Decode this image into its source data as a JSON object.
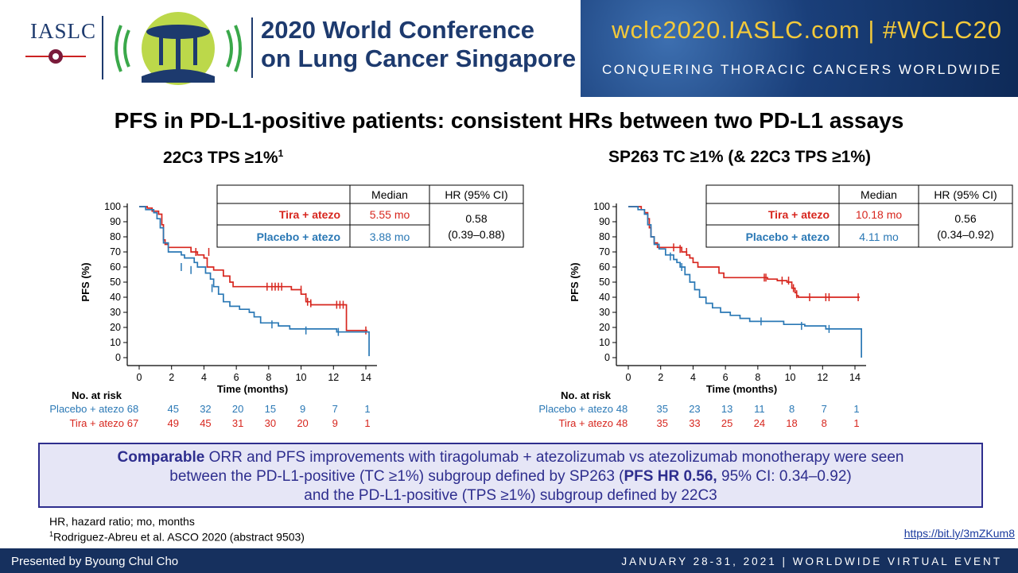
{
  "header": {
    "iaslc_logo": "IASLC",
    "conference_title_line1": "2020 World Conference",
    "conference_title_line2": "on Lung Cancer Singapore",
    "banner_url": "wclc2020.IASLC.com | #WCLC20",
    "banner_tagline": "CONQUERING THORACIC CANCERS WORLDWIDE"
  },
  "slide_title": "PFS in PD-L1-positive patients: consistent HRs between two PD-L1 assays",
  "colors": {
    "tira": "#d7261e",
    "placebo": "#2a78b5",
    "navy": "#16305e",
    "summary_text": "#2e2e8e"
  },
  "chart_data": [
    {
      "type": "line",
      "title": "22C3 TPS ≥1%",
      "title_sup": "1",
      "xlabel": "Time (months)",
      "ylabel": "PFS (%)",
      "xlim": [
        0,
        14
      ],
      "ylim": [
        0,
        100
      ],
      "xticks": [
        0,
        2,
        4,
        6,
        8,
        10,
        12,
        14
      ],
      "yticks": [
        0,
        10,
        20,
        30,
        40,
        50,
        60,
        70,
        80,
        90,
        100
      ],
      "table": {
        "headers": [
          "Median",
          "HR (95% CI)"
        ],
        "rows": [
          {
            "label": "Tira + atezo",
            "median": "5.55 mo"
          },
          {
            "label": "Placebo + atezo",
            "median": "3.88 mo"
          }
        ],
        "hr": "0.58",
        "ci": "(0.39–0.88)"
      },
      "series": [
        {
          "name": "Tira + atezo",
          "points": [
            [
              0,
              100
            ],
            [
              0.3,
              100
            ],
            [
              0.5,
              99
            ],
            [
              0.8,
              97
            ],
            [
              1.2,
              95
            ],
            [
              1.4,
              88
            ],
            [
              1.5,
              78
            ],
            [
              1.6,
              75
            ],
            [
              1.8,
              73
            ],
            [
              3.2,
              70
            ],
            [
              3.6,
              68
            ],
            [
              4.0,
              66
            ],
            [
              4.2,
              60
            ],
            [
              4.6,
              58
            ],
            [
              5.2,
              54
            ],
            [
              5.6,
              50
            ],
            [
              5.8,
              47
            ],
            [
              9.4,
              45
            ],
            [
              10.0,
              42
            ],
            [
              10.3,
              37
            ],
            [
              10.6,
              35
            ],
            [
              12.6,
              35
            ],
            [
              12.8,
              18
            ],
            [
              14.1,
              18
            ]
          ],
          "censors": [
            [
              3.5,
              70
            ],
            [
              4.3,
              70
            ],
            [
              7.9,
              47
            ],
            [
              8.2,
              47
            ],
            [
              8.4,
              47
            ],
            [
              8.6,
              47
            ],
            [
              8.8,
              47
            ],
            [
              10.0,
              45
            ],
            [
              10.3,
              40
            ],
            [
              10.4,
              37
            ],
            [
              10.6,
              36
            ],
            [
              12.2,
              35
            ],
            [
              12.4,
              35
            ],
            [
              12.6,
              35
            ],
            [
              14.0,
              18
            ]
          ]
        },
        {
          "name": "Placebo + atezo",
          "points": [
            [
              0,
              100
            ],
            [
              0.4,
              98
            ],
            [
              0.9,
              96
            ],
            [
              1.1,
              92
            ],
            [
              1.3,
              86
            ],
            [
              1.5,
              76
            ],
            [
              1.8,
              70
            ],
            [
              2.6,
              68
            ],
            [
              2.8,
              66
            ],
            [
              3.4,
              63
            ],
            [
              3.6,
              60
            ],
            [
              4.1,
              56
            ],
            [
              4.4,
              52
            ],
            [
              4.6,
              47
            ],
            [
              4.9,
              42
            ],
            [
              5.2,
              37
            ],
            [
              5.6,
              34
            ],
            [
              6.2,
              32
            ],
            [
              6.8,
              30
            ],
            [
              7.1,
              27
            ],
            [
              7.5,
              23
            ],
            [
              8.6,
              21
            ],
            [
              9.3,
              19
            ],
            [
              12.2,
              17
            ],
            [
              14.0,
              17
            ],
            [
              14.2,
              1
            ]
          ],
          "censors": [
            [
              2.6,
              60
            ],
            [
              3.2,
              58
            ],
            [
              4.5,
              46
            ],
            [
              8.2,
              22
            ],
            [
              10.3,
              18
            ],
            [
              12.3,
              17
            ]
          ]
        }
      ],
      "risk_table": {
        "header": "No. at risk",
        "rows": [
          {
            "label": "Placebo + atezo",
            "values": [
              68,
              45,
              32,
              20,
              15,
              9,
              7,
              1
            ]
          },
          {
            "label": "Tira + atezo",
            "values": [
              67,
              49,
              45,
              31,
              30,
              20,
              9,
              1
            ]
          }
        ]
      }
    },
    {
      "type": "line",
      "title": "SP263 TC ≥1% (& 22C3 TPS ≥1%)",
      "title_sup": "",
      "xlabel": "Time (months)",
      "ylabel": "PFS (%)",
      "xlim": [
        0,
        14
      ],
      "ylim": [
        0,
        100
      ],
      "xticks": [
        0,
        2,
        4,
        6,
        8,
        10,
        12,
        14
      ],
      "yticks": [
        0,
        10,
        20,
        30,
        40,
        50,
        60,
        70,
        80,
        90,
        100
      ],
      "table": {
        "headers": [
          "Median",
          "HR (95% CI)"
        ],
        "rows": [
          {
            "label": "Tira + atezo",
            "median": "10.18 mo"
          },
          {
            "label": "Placebo + atezo",
            "median": "4.11 mo"
          }
        ],
        "hr": "0.56",
        "ci": "(0.34–0.92)"
      },
      "series": [
        {
          "name": "Tira + atezo",
          "points": [
            [
              0,
              100
            ],
            [
              0.5,
              100
            ],
            [
              0.8,
              98
            ],
            [
              1.0,
              96
            ],
            [
              1.2,
              92
            ],
            [
              1.3,
              86
            ],
            [
              1.4,
              80
            ],
            [
              1.6,
              76
            ],
            [
              1.8,
              73
            ],
            [
              3.3,
              70
            ],
            [
              3.6,
              68
            ],
            [
              3.8,
              66
            ],
            [
              4.0,
              63
            ],
            [
              4.3,
              60
            ],
            [
              5.6,
              56
            ],
            [
              5.9,
              53
            ],
            [
              8.6,
              52
            ],
            [
              9.2,
              51
            ],
            [
              9.8,
              50
            ],
            [
              10.1,
              46
            ],
            [
              10.3,
              43
            ],
            [
              10.4,
              41
            ],
            [
              10.5,
              40
            ],
            [
              14.3,
              40
            ]
          ],
          "censors": [
            [
              2.8,
              73
            ],
            [
              3.2,
              72
            ],
            [
              3.6,
              70
            ],
            [
              8.4,
              53
            ],
            [
              8.5,
              53
            ],
            [
              9.5,
              51
            ],
            [
              9.9,
              51
            ],
            [
              10.2,
              46
            ],
            [
              10.4,
              42
            ],
            [
              11.2,
              40
            ],
            [
              12.2,
              40
            ],
            [
              12.4,
              40
            ],
            [
              14.2,
              40
            ]
          ]
        },
        {
          "name": "Placebo + atezo",
          "points": [
            [
              0,
              100
            ],
            [
              0.3,
              100
            ],
            [
              0.6,
              98
            ],
            [
              1.0,
              95
            ],
            [
              1.2,
              88
            ],
            [
              1.4,
              80
            ],
            [
              1.6,
              75
            ],
            [
              1.9,
              72
            ],
            [
              2.3,
              68
            ],
            [
              2.8,
              65
            ],
            [
              3.0,
              63
            ],
            [
              3.2,
              60
            ],
            [
              3.5,
              55
            ],
            [
              3.8,
              50
            ],
            [
              4.1,
              45
            ],
            [
              4.4,
              40
            ],
            [
              4.8,
              36
            ],
            [
              5.2,
              33
            ],
            [
              5.7,
              30
            ],
            [
              6.3,
              28
            ],
            [
              6.9,
              26
            ],
            [
              7.5,
              24
            ],
            [
              9.6,
              22
            ],
            [
              10.9,
              21
            ],
            [
              12.2,
              19
            ],
            [
              14.3,
              19
            ],
            [
              14.4,
              0
            ]
          ],
          "censors": [
            [
              2.6,
              67
            ],
            [
              3.3,
              60
            ],
            [
              8.2,
              24
            ],
            [
              10.7,
              21
            ],
            [
              12.4,
              19
            ]
          ]
        }
      ],
      "risk_table": {
        "header": "No. at risk",
        "rows": [
          {
            "label": "Placebo + atezo",
            "values": [
              48,
              35,
              23,
              13,
              11,
              8,
              7,
              1
            ]
          },
          {
            "label": "Tira + atezo",
            "values": [
              48,
              35,
              33,
              25,
              24,
              18,
              8,
              1
            ]
          }
        ]
      }
    }
  ],
  "summary": {
    "line1_bold": "Comparable",
    "line1_rest": " ORR and PFS improvements with tiragolumab + atezolizumab vs atezolizumab monotherapy were seen",
    "line2_pre": "between the PD-L1-positive (TC ≥1%) subgroup defined by SP263 (",
    "line2_bold": "PFS HR 0.56,",
    "line2_post": " 95% CI: 0.34–0.92)",
    "line3": "and the PD-L1-positive (TPS ≥1%) subgroup defined by 22C3"
  },
  "footnotes": {
    "abbrev": "HR, hazard ratio; mo, months",
    "ref_sup": "1",
    "ref": "Rodriguez-Abreu et al. ASCO 2020 (abstract 9503)",
    "link": "https://bit.ly/3mZKum8"
  },
  "footer": {
    "presenter": "Presented by Byoung Chul Cho",
    "event": "JANUARY 28-31, 2021 | WORLDWIDE VIRTUAL EVENT"
  }
}
